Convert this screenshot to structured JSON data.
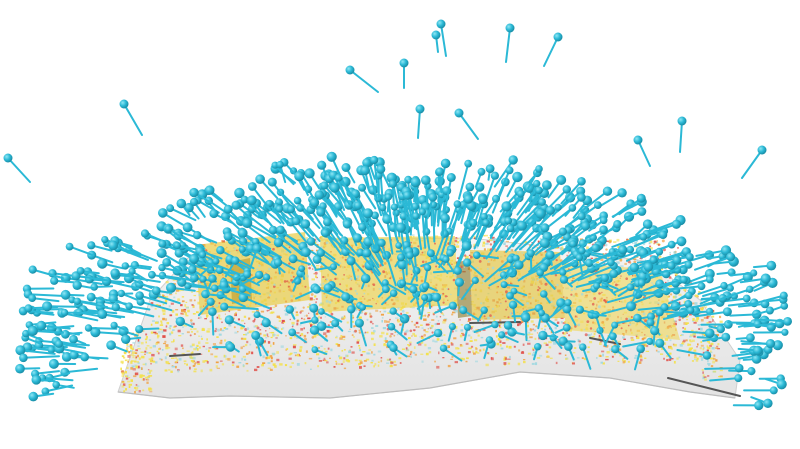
{
  "scene": {
    "subject": "point-cloud-with-camera-pose-markers",
    "colors": {
      "background": "#ffffff",
      "ground": "#efefef",
      "ground_shadow": "#d6d6d6",
      "camera_marker": "#2bb9d6",
      "camera_highlight": "#7fe0f0",
      "heat_yellow": "#f3e04a",
      "heat_orange": "#f0a040",
      "heat_red": "#e0504a",
      "heat_cyan": "#9fd8e0",
      "wall": "#e2c640"
    }
  }
}
